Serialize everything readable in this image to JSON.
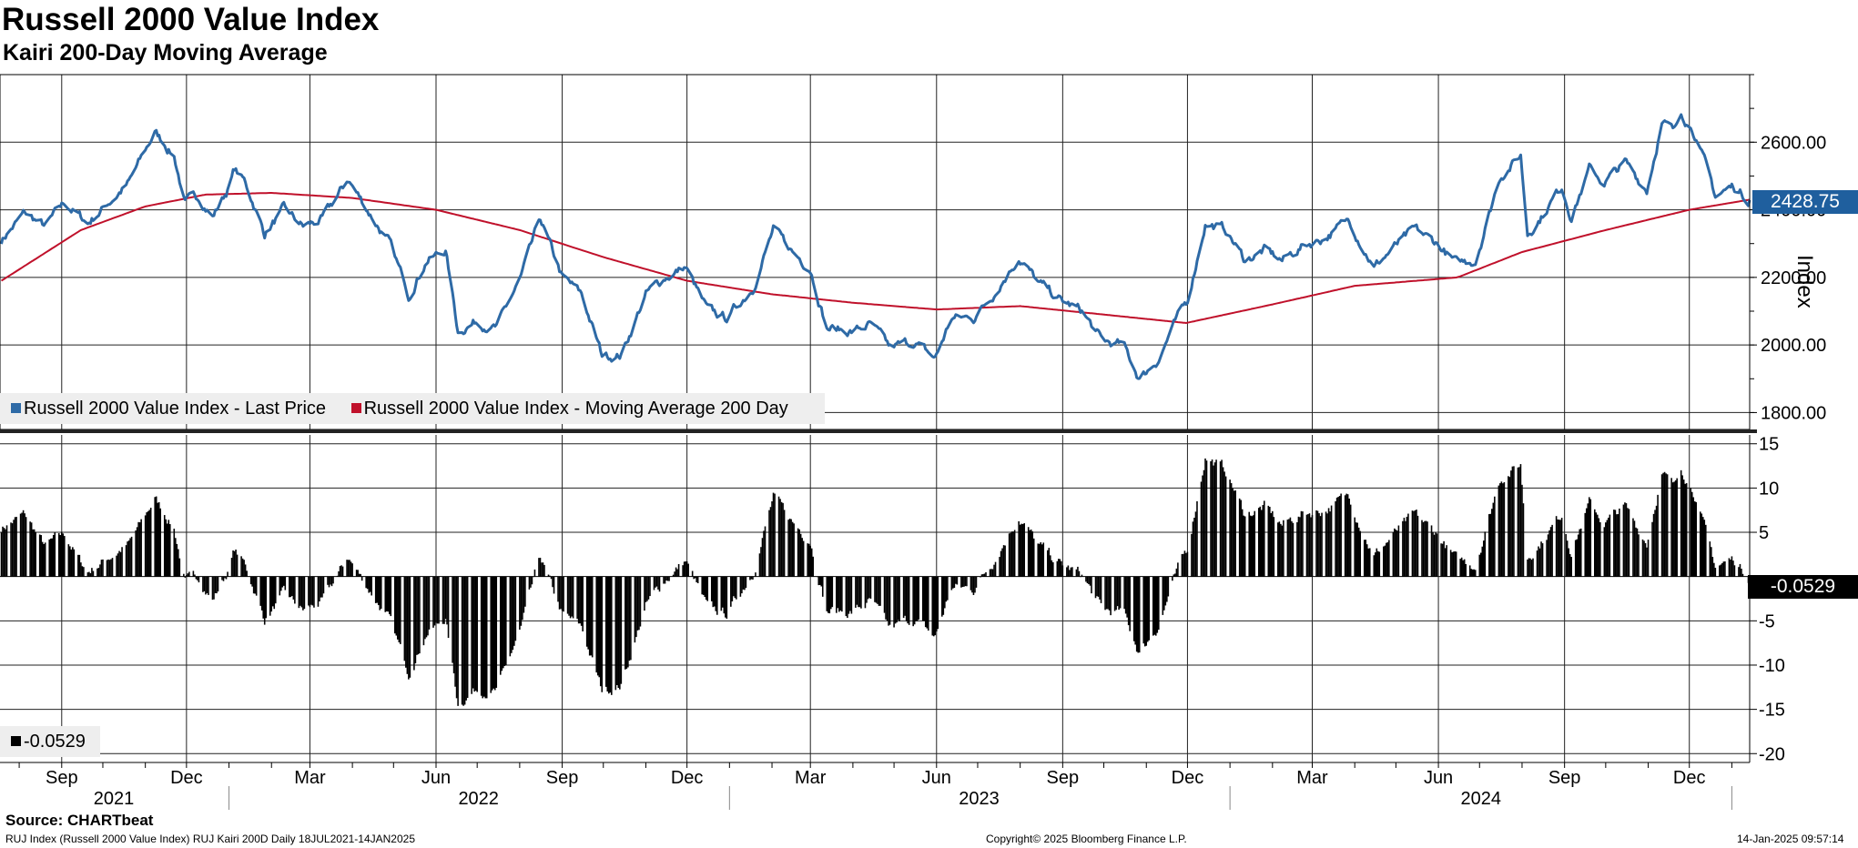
{
  "header": {
    "title": "Russell 2000 Value Index",
    "subtitle": "Kairi 200-Day Moving Average"
  },
  "colors": {
    "price": "#2e6aa6",
    "ma": "#c0112b",
    "kairi": "#000000",
    "grid": "#222222"
  },
  "chart_data": [
    {
      "type": "line",
      "title": "Russell 2000 Value Index",
      "ylabel": "Index",
      "ylim": [
        1750,
        2800
      ],
      "yticks": [
        1800,
        2000,
        2200,
        2400,
        2600
      ],
      "ytick_labels": [
        "1800.00",
        "2000.00",
        "2200.00",
        "2400.00",
        "2600.00"
      ],
      "last_value_label": "2428.75",
      "x_range": [
        "2021-07-18",
        "2025-01-14"
      ],
      "price_anchors": [
        [
          "2021-07-19",
          2310
        ],
        [
          "2021-08-05",
          2390
        ],
        [
          "2021-08-20",
          2350
        ],
        [
          "2021-09-03",
          2420
        ],
        [
          "2021-09-20",
          2360
        ],
        [
          "2021-10-05",
          2420
        ],
        [
          "2021-10-20",
          2480
        ],
        [
          "2021-11-08",
          2630
        ],
        [
          "2021-11-22",
          2560
        ],
        [
          "2021-11-30",
          2420
        ],
        [
          "2021-12-10",
          2440
        ],
        [
          "2021-12-20",
          2380
        ],
        [
          "2021-12-31",
          2460
        ],
        [
          "2022-01-05",
          2520
        ],
        [
          "2022-01-13",
          2480
        ],
        [
          "2022-01-27",
          2330
        ],
        [
          "2022-02-10",
          2400
        ],
        [
          "2022-02-24",
          2350
        ],
        [
          "2022-03-10",
          2370
        ],
        [
          "2022-03-29",
          2490
        ],
        [
          "2022-04-12",
          2400
        ],
        [
          "2022-04-28",
          2300
        ],
        [
          "2022-05-12",
          2150
        ],
        [
          "2022-05-25",
          2250
        ],
        [
          "2022-06-08",
          2280
        ],
        [
          "2022-06-17",
          2040
        ],
        [
          "2022-06-30",
          2070
        ],
        [
          "2022-07-15",
          2050
        ],
        [
          "2022-08-02",
          2200
        ],
        [
          "2022-08-16",
          2370
        ],
        [
          "2022-09-01",
          2200
        ],
        [
          "2022-09-15",
          2150
        ],
        [
          "2022-09-30",
          1970
        ],
        [
          "2022-10-14",
          1970
        ],
        [
          "2022-11-01",
          2150
        ],
        [
          "2022-11-15",
          2200
        ],
        [
          "2022-11-30",
          2230
        ],
        [
          "2022-12-16",
          2100
        ],
        [
          "2022-12-30",
          2080
        ],
        [
          "2023-01-18",
          2170
        ],
        [
          "2023-02-02",
          2340
        ],
        [
          "2023-02-17",
          2270
        ],
        [
          "2023-03-01",
          2230
        ],
        [
          "2023-03-13",
          2050
        ],
        [
          "2023-03-31",
          2040
        ],
        [
          "2023-04-14",
          2060
        ],
        [
          "2023-04-28",
          1990
        ],
        [
          "2023-05-15",
          2010
        ],
        [
          "2023-05-31",
          1960
        ],
        [
          "2023-06-12",
          2080
        ],
        [
          "2023-06-28",
          2080
        ],
        [
          "2023-07-14",
          2160
        ],
        [
          "2023-07-31",
          2260
        ],
        [
          "2023-08-15",
          2180
        ],
        [
          "2023-08-31",
          2130
        ],
        [
          "2023-09-15",
          2100
        ],
        [
          "2023-09-30",
          2010
        ],
        [
          "2023-10-15",
          2000
        ],
        [
          "2023-10-27",
          1900
        ],
        [
          "2023-11-10",
          1960
        ],
        [
          "2023-11-20",
          2050
        ],
        [
          "2023-12-01",
          2130
        ],
        [
          "2023-12-14",
          2360
        ],
        [
          "2023-12-29",
          2340
        ],
        [
          "2024-01-12",
          2250
        ],
        [
          "2024-01-26",
          2280
        ],
        [
          "2024-02-08",
          2250
        ],
        [
          "2024-02-22",
          2290
        ],
        [
          "2024-03-11",
          2320
        ],
        [
          "2024-03-28",
          2370
        ],
        [
          "2024-04-15",
          2230
        ],
        [
          "2024-04-30",
          2290
        ],
        [
          "2024-05-15",
          2340
        ],
        [
          "2024-05-31",
          2300
        ],
        [
          "2024-06-14",
          2240
        ],
        [
          "2024-06-28",
          2250
        ],
        [
          "2024-07-16",
          2500
        ],
        [
          "2024-07-31",
          2560
        ],
        [
          "2024-08-05",
          2330
        ],
        [
          "2024-08-15",
          2380
        ],
        [
          "2024-08-30",
          2470
        ],
        [
          "2024-09-06",
          2380
        ],
        [
          "2024-09-19",
          2520
        ],
        [
          "2024-09-30",
          2480
        ],
        [
          "2024-10-15",
          2540
        ],
        [
          "2024-10-31",
          2460
        ],
        [
          "2024-11-11",
          2660
        ],
        [
          "2024-11-20",
          2630
        ],
        [
          "2024-11-25",
          2690
        ],
        [
          "2024-12-05",
          2630
        ],
        [
          "2024-12-13",
          2530
        ],
        [
          "2024-12-20",
          2440
        ],
        [
          "2025-01-02",
          2470
        ],
        [
          "2025-01-14",
          2428.75
        ]
      ],
      "ma_anchors": [
        [
          "2021-07-19",
          2190
        ],
        [
          "2021-09-15",
          2340
        ],
        [
          "2021-11-01",
          2410
        ],
        [
          "2021-12-15",
          2445
        ],
        [
          "2022-02-01",
          2450
        ],
        [
          "2022-04-01",
          2435
        ],
        [
          "2022-06-01",
          2400
        ],
        [
          "2022-08-01",
          2340
        ],
        [
          "2022-10-01",
          2260
        ],
        [
          "2022-12-01",
          2190
        ],
        [
          "2023-02-01",
          2150
        ],
        [
          "2023-04-01",
          2125
        ],
        [
          "2023-06-01",
          2105
        ],
        [
          "2023-08-01",
          2115
        ],
        [
          "2023-10-01",
          2090
        ],
        [
          "2023-11-30",
          2065
        ],
        [
          "2024-02-01",
          2120
        ],
        [
          "2024-04-01",
          2175
        ],
        [
          "2024-06-15",
          2200
        ],
        [
          "2024-08-01",
          2275
        ],
        [
          "2024-10-01",
          2340
        ],
        [
          "2024-12-01",
          2400
        ],
        [
          "2025-01-14",
          2430
        ]
      ],
      "legend": [
        {
          "label": "Russell 2000 Value Index - Last Price",
          "color": "#2e6aa6"
        },
        {
          "label": "Russell 2000 Value Index - Moving Average 200 Day",
          "color": "#c0112b"
        }
      ]
    },
    {
      "type": "bar",
      "title": "Kairi 200D",
      "ylim": [
        -21,
        16
      ],
      "yticks": [
        -20,
        -15,
        -10,
        -5,
        0,
        5,
        10,
        15
      ],
      "ytick_labels": [
        "-20",
        "-15",
        "-10",
        "-5",
        "",
        "5",
        "10",
        "15"
      ],
      "last_value_label": "-0.0529",
      "legend": [
        {
          "label": "-0.0529",
          "color": "#000000"
        }
      ]
    }
  ],
  "x_axis": {
    "month_ticks": [
      {
        "date": "2021-09-01",
        "label": "Sep"
      },
      {
        "date": "2021-12-01",
        "label": "Dec"
      },
      {
        "date": "2022-03-01",
        "label": "Mar"
      },
      {
        "date": "2022-06-01",
        "label": "Jun"
      },
      {
        "date": "2022-09-01",
        "label": "Sep"
      },
      {
        "date": "2022-12-01",
        "label": "Dec"
      },
      {
        "date": "2023-03-01",
        "label": "Mar"
      },
      {
        "date": "2023-06-01",
        "label": "Jun"
      },
      {
        "date": "2023-09-01",
        "label": "Sep"
      },
      {
        "date": "2023-12-01",
        "label": "Dec"
      },
      {
        "date": "2024-03-01",
        "label": "Mar"
      },
      {
        "date": "2024-06-01",
        "label": "Jun"
      },
      {
        "date": "2024-09-01",
        "label": "Sep"
      },
      {
        "date": "2024-12-01",
        "label": "Dec"
      }
    ],
    "years": [
      {
        "label": "2021",
        "center": "2021-10-09"
      },
      {
        "label": "2022",
        "center": "2022-07-02"
      },
      {
        "label": "2023",
        "center": "2023-07-02"
      },
      {
        "label": "2024",
        "center": "2024-07-02"
      }
    ],
    "year_boundaries": [
      "2022-01-01",
      "2023-01-01",
      "2024-01-01",
      "2025-01-01"
    ]
  },
  "footer": {
    "source": "Source: CHARTbeat",
    "ticker": "RUJ Index (Russell 2000 Value Index) RUJ Kairi 200D  Daily 18JUL2021-14JAN2025",
    "copyright": "Copyright© 2025 Bloomberg Finance L.P.",
    "timestamp": "14-Jan-2025 09:57:14"
  }
}
